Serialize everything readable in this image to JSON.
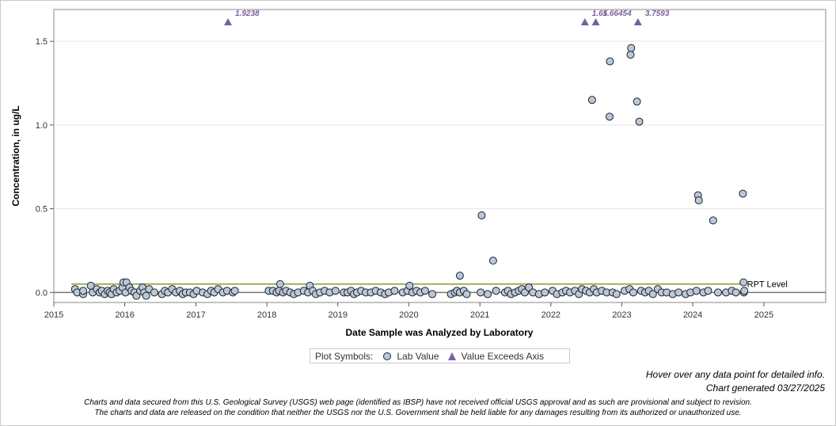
{
  "chart_data": {
    "type": "scatter",
    "xlabel": "Date Sample was Analyzed by Laboratory",
    "ylabel": "Concentration, in ug/L",
    "xlim": [
      "2015-01-01",
      "2025-11-15"
    ],
    "ylim": [
      -0.06,
      1.69
    ],
    "x_ticks": [
      "2015",
      "2016",
      "2017",
      "2018",
      "2019",
      "2020",
      "2021",
      "2022",
      "2023",
      "2024",
      "2025"
    ],
    "y_ticks": [
      "0.0",
      "0.5",
      "1.0",
      "1.5"
    ],
    "grid": "horizontal",
    "reference_line": {
      "label": "RPT Level",
      "value": 0.05,
      "x_start": "2015-04-01",
      "x_end": "2024-09-20",
      "color": "#8a9a2a"
    },
    "series": [
      {
        "name": "Lab Value",
        "marker": "circle",
        "color": "#b8c8dc",
        "points": [
          [
            "2015-04-20",
            0.02
          ],
          [
            "2015-05-01",
            0.0
          ],
          [
            "2015-06-01",
            -0.01
          ],
          [
            "2015-06-01",
            0.01
          ],
          [
            "2015-07-10",
            0.04
          ],
          [
            "2015-07-20",
            0.0
          ],
          [
            "2015-08-10",
            0.02
          ],
          [
            "2015-08-25",
            0.0
          ],
          [
            "2015-09-05",
            0.01
          ],
          [
            "2015-09-20",
            -0.01
          ],
          [
            "2015-10-05",
            0.01
          ],
          [
            "2015-10-15",
            0.0
          ],
          [
            "2015-10-25",
            -0.01
          ],
          [
            "2015-11-05",
            0.02
          ],
          [
            "2015-11-20",
            0.0
          ],
          [
            "2015-12-05",
            0.01
          ],
          [
            "2015-12-20",
            0.03
          ],
          [
            "2015-12-25",
            0.06
          ],
          [
            "2016-01-05",
            0.0
          ],
          [
            "2016-01-10",
            0.06
          ],
          [
            "2016-01-25",
            0.03
          ],
          [
            "2016-02-05",
            0.01
          ],
          [
            "2016-02-20",
            0.0
          ],
          [
            "2016-03-01",
            -0.02
          ],
          [
            "2016-03-20",
            0.01
          ],
          [
            "2016-04-01",
            0.03
          ],
          [
            "2016-04-10",
            0.0
          ],
          [
            "2016-04-20",
            -0.02
          ],
          [
            "2016-05-05",
            0.02
          ],
          [
            "2016-06-01",
            0.0
          ],
          [
            "2016-07-10",
            -0.01
          ],
          [
            "2016-07-25",
            0.01
          ],
          [
            "2016-08-10",
            0.0
          ],
          [
            "2016-09-01",
            0.02
          ],
          [
            "2016-09-20",
            0.0
          ],
          [
            "2016-10-10",
            0.01
          ],
          [
            "2016-10-25",
            -0.01
          ],
          [
            "2016-11-10",
            0.0
          ],
          [
            "2016-12-01",
            0.0
          ],
          [
            "2016-12-20",
            -0.01
          ],
          [
            "2017-01-05",
            0.01
          ],
          [
            "2017-02-05",
            0.0
          ],
          [
            "2017-03-01",
            -0.01
          ],
          [
            "2017-03-20",
            0.01
          ],
          [
            "2017-04-05",
            0.0
          ],
          [
            "2017-04-25",
            0.02
          ],
          [
            "2017-05-20",
            0.0
          ],
          [
            "2017-06-10",
            0.01
          ],
          [
            "2017-07-10",
            0.0
          ],
          [
            "2017-07-20",
            0.01
          ],
          [
            "2018-01-10",
            0.01
          ],
          [
            "2018-02-01",
            0.01
          ],
          [
            "2018-02-20",
            0.0
          ],
          [
            "2018-03-05",
            0.01
          ],
          [
            "2018-03-10",
            0.05
          ],
          [
            "2018-03-25",
            0.0
          ],
          [
            "2018-04-10",
            0.01
          ],
          [
            "2018-05-01",
            0.0
          ],
          [
            "2018-05-20",
            -0.01
          ],
          [
            "2018-06-10",
            0.0
          ],
          [
            "2018-07-10",
            0.01
          ],
          [
            "2018-08-01",
            0.0
          ],
          [
            "2018-08-10",
            0.04
          ],
          [
            "2018-08-25",
            0.01
          ],
          [
            "2018-09-10",
            -0.01
          ],
          [
            "2018-10-01",
            0.0
          ],
          [
            "2018-10-25",
            0.01
          ],
          [
            "2018-11-20",
            0.0
          ],
          [
            "2018-12-20",
            0.01
          ],
          [
            "2019-02-01",
            0.0
          ],
          [
            "2019-02-20",
            0.0
          ],
          [
            "2019-03-10",
            0.01
          ],
          [
            "2019-03-25",
            -0.01
          ],
          [
            "2019-04-10",
            0.0
          ],
          [
            "2019-05-01",
            0.01
          ],
          [
            "2019-05-25",
            0.0
          ],
          [
            "2019-06-20",
            0.0
          ],
          [
            "2019-07-15",
            0.01
          ],
          [
            "2019-08-10",
            0.0
          ],
          [
            "2019-09-01",
            -0.01
          ],
          [
            "2019-09-20",
            0.0
          ],
          [
            "2019-10-20",
            0.01
          ],
          [
            "2019-12-01",
            0.0
          ],
          [
            "2019-12-25",
            0.01
          ],
          [
            "2020-01-05",
            0.04
          ],
          [
            "2020-01-20",
            0.0
          ],
          [
            "2020-02-10",
            0.01
          ],
          [
            "2020-03-01",
            0.0
          ],
          [
            "2020-03-25",
            0.01
          ],
          [
            "2020-05-01",
            -0.01
          ],
          [
            "2020-08-05",
            -0.01
          ],
          [
            "2020-08-25",
            0.0
          ],
          [
            "2020-09-05",
            0.01
          ],
          [
            "2020-09-20",
            0.0
          ],
          [
            "2020-09-20",
            0.1
          ],
          [
            "2020-10-10",
            0.01
          ],
          [
            "2020-10-25",
            -0.01
          ],
          [
            "2021-01-10",
            0.46
          ],
          [
            "2021-01-05",
            0.0
          ],
          [
            "2021-02-10",
            -0.01
          ],
          [
            "2021-03-10",
            0.19
          ],
          [
            "2021-03-25",
            0.01
          ],
          [
            "2021-05-10",
            0.0
          ],
          [
            "2021-05-25",
            0.01
          ],
          [
            "2021-06-10",
            -0.01
          ],
          [
            "2021-07-01",
            0.0
          ],
          [
            "2021-07-20",
            0.01
          ],
          [
            "2021-08-05",
            0.02
          ],
          [
            "2021-08-20",
            0.0
          ],
          [
            "2021-09-10",
            0.03
          ],
          [
            "2021-10-01",
            0.0
          ],
          [
            "2021-11-01",
            -0.01
          ],
          [
            "2021-12-01",
            0.0
          ],
          [
            "2022-01-10",
            0.01
          ],
          [
            "2022-02-01",
            -0.01
          ],
          [
            "2022-03-01",
            0.0
          ],
          [
            "2022-03-20",
            0.01
          ],
          [
            "2022-04-10",
            0.0
          ],
          [
            "2022-05-05",
            0.01
          ],
          [
            "2022-05-25",
            -0.01
          ],
          [
            "2022-06-10",
            0.02
          ],
          [
            "2022-07-01",
            0.01
          ],
          [
            "2022-07-20",
            0.0
          ],
          [
            "2022-08-01",
            1.15
          ],
          [
            "2022-08-10",
            0.02
          ],
          [
            "2022-08-25",
            0.0
          ],
          [
            "2022-09-20",
            0.01
          ],
          [
            "2022-10-15",
            0.0
          ],
          [
            "2022-10-30",
            1.05
          ],
          [
            "2022-11-01",
            1.38
          ],
          [
            "2022-11-15",
            0.0
          ],
          [
            "2022-12-05",
            -0.01
          ],
          [
            "2023-01-15",
            0.01
          ],
          [
            "2023-02-10",
            0.02
          ],
          [
            "2023-02-15",
            1.42
          ],
          [
            "2023-02-18",
            1.46
          ],
          [
            "2023-03-01",
            0.0
          ],
          [
            "2023-03-20",
            1.14
          ],
          [
            "2023-04-01",
            1.02
          ],
          [
            "2023-04-10",
            0.01
          ],
          [
            "2023-05-01",
            0.0
          ],
          [
            "2023-05-20",
            0.01
          ],
          [
            "2023-06-10",
            -0.01
          ],
          [
            "2023-07-05",
            0.02
          ],
          [
            "2023-07-25",
            0.0
          ],
          [
            "2023-08-20",
            0.0
          ],
          [
            "2023-09-20",
            -0.01
          ],
          [
            "2023-10-20",
            0.0
          ],
          [
            "2023-11-25",
            -0.01
          ],
          [
            "2023-12-20",
            0.0
          ],
          [
            "2024-01-20",
            0.01
          ],
          [
            "2024-01-28",
            0.58
          ],
          [
            "2024-02-01",
            0.55
          ],
          [
            "2024-02-25",
            0.0
          ],
          [
            "2024-03-20",
            0.01
          ],
          [
            "2024-04-15",
            0.43
          ],
          [
            "2024-05-10",
            0.0
          ],
          [
            "2024-06-20",
            0.0
          ],
          [
            "2024-07-20",
            0.01
          ],
          [
            "2024-08-10",
            0.0
          ],
          [
            "2024-09-15",
            0.59
          ],
          [
            "2024-09-18",
            0.06
          ],
          [
            "2024-09-20",
            0.0
          ],
          [
            "2024-09-22",
            0.01
          ]
        ]
      },
      {
        "name": "Value Exceeds Axis",
        "marker": "triangle",
        "color": "#7a5fa0",
        "points": [
          {
            "x": "2017-06-15",
            "label": "1.9238"
          },
          {
            "x": "2022-06-25",
            "label": "1.65"
          },
          {
            "x": "2022-08-20",
            "label": "1.66454"
          },
          {
            "x": "2023-03-25",
            "label": "3.7593"
          }
        ]
      }
    ],
    "legend": {
      "title": "Plot Symbols:",
      "placement": "bottom-center"
    }
  },
  "notes": {
    "hover": "Hover over any data point for detailed info.",
    "generated": "Chart generated 03/27/2025"
  },
  "disclaimer": {
    "line1": "Charts and data secured from this U.S. Geological Survey (USGS) web page (identified as IBSP) have not received official USGS approval and as such are provisional and subject to revision.",
    "line2": "The charts and data are released on the condition that neither the USGS nor the U.S. Government shall be held liable for any damages resulting from its authorized or unauthorized use."
  }
}
